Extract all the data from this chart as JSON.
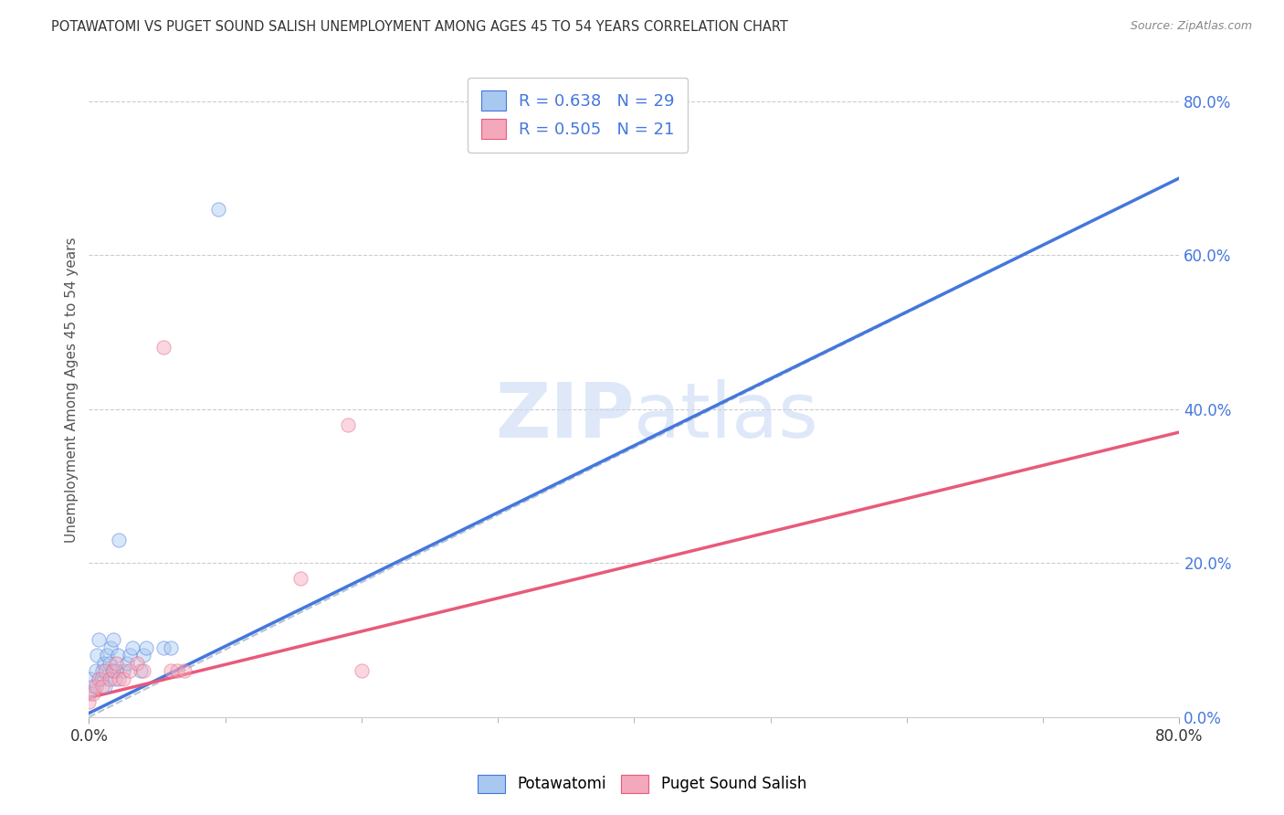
{
  "title": "POTAWATOMI VS PUGET SOUND SALISH UNEMPLOYMENT AMONG AGES 45 TO 54 YEARS CORRELATION CHART",
  "source": "Source: ZipAtlas.com",
  "ylabel": "Unemployment Among Ages 45 to 54 years",
  "xlim": [
    0,
    0.8
  ],
  "ylim": [
    0,
    0.85
  ],
  "x_ticks": [
    0.0,
    0.8
  ],
  "x_tick_labels": [
    "0.0%",
    "80.0%"
  ],
  "x_minor_ticks": [
    0.1,
    0.2,
    0.3,
    0.4,
    0.5,
    0.6,
    0.7
  ],
  "y_ticks_right": [
    0.0,
    0.2,
    0.4,
    0.6,
    0.8
  ],
  "y_tick_labels_right": [
    "0.0%",
    "20.0%",
    "40.0%",
    "60.0%",
    "80.0%"
  ],
  "potawatomi_x": [
    0.0,
    0.001,
    0.003,
    0.005,
    0.006,
    0.007,
    0.009,
    0.01,
    0.011,
    0.012,
    0.013,
    0.015,
    0.016,
    0.017,
    0.018,
    0.019,
    0.02,
    0.021,
    0.022,
    0.025,
    0.028,
    0.03,
    0.032,
    0.038,
    0.04,
    0.042,
    0.055,
    0.06,
    0.095
  ],
  "potawatomi_y": [
    0.03,
    0.05,
    0.04,
    0.06,
    0.08,
    0.1,
    0.05,
    0.06,
    0.07,
    0.04,
    0.08,
    0.07,
    0.09,
    0.06,
    0.1,
    0.05,
    0.06,
    0.08,
    0.23,
    0.06,
    0.07,
    0.08,
    0.09,
    0.06,
    0.08,
    0.09,
    0.09,
    0.09,
    0.66
  ],
  "puget_x": [
    0.0,
    0.003,
    0.005,
    0.007,
    0.01,
    0.012,
    0.015,
    0.018,
    0.02,
    0.022,
    0.025,
    0.03,
    0.035,
    0.04,
    0.055,
    0.06,
    0.065,
    0.07,
    0.155,
    0.19,
    0.2
  ],
  "puget_y": [
    0.02,
    0.03,
    0.04,
    0.05,
    0.04,
    0.06,
    0.05,
    0.06,
    0.07,
    0.05,
    0.05,
    0.06,
    0.07,
    0.06,
    0.48,
    0.06,
    0.06,
    0.06,
    0.18,
    0.38,
    0.06
  ],
  "blue_line_x": [
    0.0,
    0.8
  ],
  "blue_line_y": [
    0.005,
    0.7
  ],
  "pink_line_x": [
    0.0,
    0.8
  ],
  "pink_line_y": [
    0.025,
    0.37
  ],
  "diag_line_x": [
    0.0,
    0.8
  ],
  "diag_line_y": [
    0.0,
    0.7
  ],
  "dot_color_blue": "#a8c8f0",
  "dot_color_pink": "#f4a8bc",
  "line_color_blue": "#4477dd",
  "line_color_pink": "#e85a7a",
  "diag_color": "#aabbcc",
  "R_blue": "0.638",
  "N_blue": "29",
  "R_pink": "0.505",
  "N_pink": "21",
  "legend_blue_label": "Potawatomi",
  "legend_pink_label": "Puget Sound Salish",
  "watermark_zip": "ZIP",
  "watermark_atlas": "atlas",
  "background_color": "#ffffff",
  "grid_color": "#cccccc",
  "title_color": "#333333",
  "axis_label_color": "#555555",
  "right_tick_color": "#4477dd",
  "dot_size": 120,
  "dot_alpha": 0.45
}
